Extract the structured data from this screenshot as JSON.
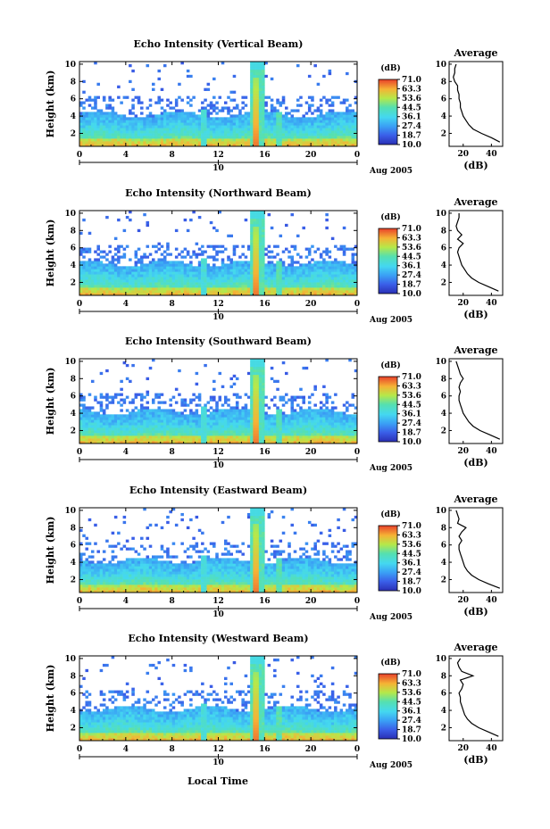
{
  "common": {
    "xlabel": "Local Time",
    "ylabel": "Height (km)",
    "date_label": "Aug 2005",
    "colorbar_unit": "(dB)",
    "colorbar_ticks": [
      "71.0",
      "63.3",
      "53.6",
      "44.5",
      "36.1",
      "27.4",
      "18.7",
      "10.0"
    ],
    "avg_title": "Average",
    "avg_xlabel": "(dB)",
    "day_marker_label": "10"
  },
  "chart_data": [
    {
      "type": "heatmap",
      "title": "Echo Intensity (Vertical Beam)",
      "xlabel": "",
      "ylabel": "Height (km)",
      "xlim": [
        0,
        24
      ],
      "ylim": [
        0.5,
        10.3
      ],
      "x_ticks": [
        "0",
        "4",
        "8",
        "12",
        "16",
        "20",
        "0"
      ],
      "y_ticks": [
        "2",
        "4",
        "6",
        "8",
        "10"
      ],
      "colorbar": {
        "label": "(dB)",
        "min": 10.0,
        "max": 71.0
      },
      "average_profile": {
        "title": "Average",
        "xlabel": "(dB)",
        "x_ticks": [
          "20",
          "40"
        ],
        "xlim": [
          10,
          48
        ],
        "ylim": [
          0.5,
          10.3
        ],
        "height": [
          1,
          1.5,
          2,
          2.5,
          3,
          3.5,
          4,
          4.5,
          5,
          5.5,
          6,
          6.5,
          7,
          7.5,
          8,
          8.5,
          9,
          9.5,
          10
        ],
        "db": [
          46,
          40,
          33,
          27,
          24,
          22,
          20,
          19,
          18,
          18,
          17,
          17,
          16,
          16,
          14,
          13,
          14,
          14,
          15
        ]
      }
    },
    {
      "type": "heatmap",
      "title": "Echo Intensity (Northward Beam)",
      "xlabel": "",
      "ylabel": "Height (km)",
      "xlim": [
        0,
        24
      ],
      "ylim": [
        0.5,
        10.3
      ],
      "x_ticks": [
        "0",
        "4",
        "8",
        "12",
        "16",
        "20",
        "0"
      ],
      "y_ticks": [
        "2",
        "4",
        "6",
        "8",
        "10"
      ],
      "colorbar": {
        "label": "(dB)",
        "min": 10.0,
        "max": 71.0
      },
      "average_profile": {
        "title": "Average",
        "xlabel": "(dB)",
        "x_ticks": [
          "20",
          "40"
        ],
        "xlim": [
          10,
          48
        ],
        "ylim": [
          0.5,
          10.3
        ],
        "height": [
          1,
          1.5,
          2,
          2.5,
          3,
          3.5,
          4,
          4.5,
          5,
          5.5,
          6,
          6.5,
          7,
          7.5,
          8,
          8.5,
          9,
          9.5,
          10
        ],
        "db": [
          45,
          38,
          31,
          26,
          23,
          21,
          19,
          18,
          17,
          16,
          17,
          20,
          16,
          19,
          16,
          15,
          16,
          17,
          17
        ]
      }
    },
    {
      "type": "heatmap",
      "title": "Echo Intensity (Southward Beam)",
      "xlabel": "",
      "ylabel": "Height (km)",
      "xlim": [
        0,
        24
      ],
      "ylim": [
        0.5,
        10.3
      ],
      "x_ticks": [
        "0",
        "4",
        "8",
        "12",
        "16",
        "20",
        "0"
      ],
      "y_ticks": [
        "2",
        "4",
        "6",
        "8",
        "10"
      ],
      "colorbar": {
        "label": "(dB)",
        "min": 10.0,
        "max": 71.0
      },
      "average_profile": {
        "title": "Average",
        "xlabel": "(dB)",
        "x_ticks": [
          "20",
          "40"
        ],
        "xlim": [
          10,
          48
        ],
        "ylim": [
          0.5,
          10.3
        ],
        "height": [
          1,
          1.5,
          2,
          2.5,
          3,
          3.5,
          4,
          4.5,
          5,
          5.5,
          6,
          6.5,
          7,
          7.5,
          8,
          8.5,
          9,
          9.5,
          10
        ],
        "db": [
          46,
          39,
          32,
          27,
          24,
          22,
          20,
          19,
          18,
          17,
          17,
          18,
          17,
          18,
          20,
          18,
          17,
          16,
          15
        ]
      }
    },
    {
      "type": "heatmap",
      "title": "Echo Intensity (Eastward Beam)",
      "xlabel": "",
      "ylabel": "Height (km)",
      "xlim": [
        0,
        24
      ],
      "ylim": [
        0.5,
        10.3
      ],
      "x_ticks": [
        "0",
        "4",
        "8",
        "12",
        "16",
        "20",
        "0"
      ],
      "y_ticks": [
        "2",
        "4",
        "6",
        "8",
        "10"
      ],
      "colorbar": {
        "label": "(dB)",
        "min": 10.0,
        "max": 71.0
      },
      "average_profile": {
        "title": "Average",
        "xlabel": "(dB)",
        "x_ticks": [
          "20",
          "40"
        ],
        "xlim": [
          10,
          48
        ],
        "ylim": [
          0.5,
          10.3
        ],
        "height": [
          1,
          1.5,
          2,
          2.5,
          3,
          3.5,
          4,
          4.5,
          5,
          5.5,
          6,
          6.5,
          7,
          7.5,
          8,
          8.5,
          9,
          9.5,
          10
        ],
        "db": [
          46,
          38,
          31,
          26,
          23,
          21,
          20,
          19,
          18,
          17,
          17,
          19,
          17,
          19,
          22,
          16,
          17,
          16,
          15
        ]
      }
    },
    {
      "type": "heatmap",
      "title": "Echo Intensity (Westward Beam)",
      "xlabel": "Local Time",
      "ylabel": "Height (km)",
      "xlim": [
        0,
        24
      ],
      "ylim": [
        0.5,
        10.3
      ],
      "x_ticks": [
        "0",
        "4",
        "8",
        "12",
        "16",
        "20",
        "0"
      ],
      "y_ticks": [
        "2",
        "4",
        "6",
        "8",
        "10"
      ],
      "colorbar": {
        "label": "(dB)",
        "min": 10.0,
        "max": 71.0
      },
      "average_profile": {
        "title": "Average",
        "xlabel": "(dB)",
        "x_ticks": [
          "20",
          "40"
        ],
        "xlim": [
          10,
          48
        ],
        "ylim": [
          0.5,
          10.3
        ],
        "height": [
          1,
          1.5,
          2,
          2.5,
          3,
          3.5,
          4,
          4.5,
          5,
          5.5,
          6,
          6.5,
          7,
          7.5,
          8,
          8.5,
          9,
          9.5,
          10
        ],
        "db": [
          45,
          38,
          31,
          26,
          23,
          21,
          20,
          19,
          18,
          18,
          17,
          19,
          20,
          18,
          27,
          19,
          17,
          16,
          18
        ]
      }
    }
  ]
}
